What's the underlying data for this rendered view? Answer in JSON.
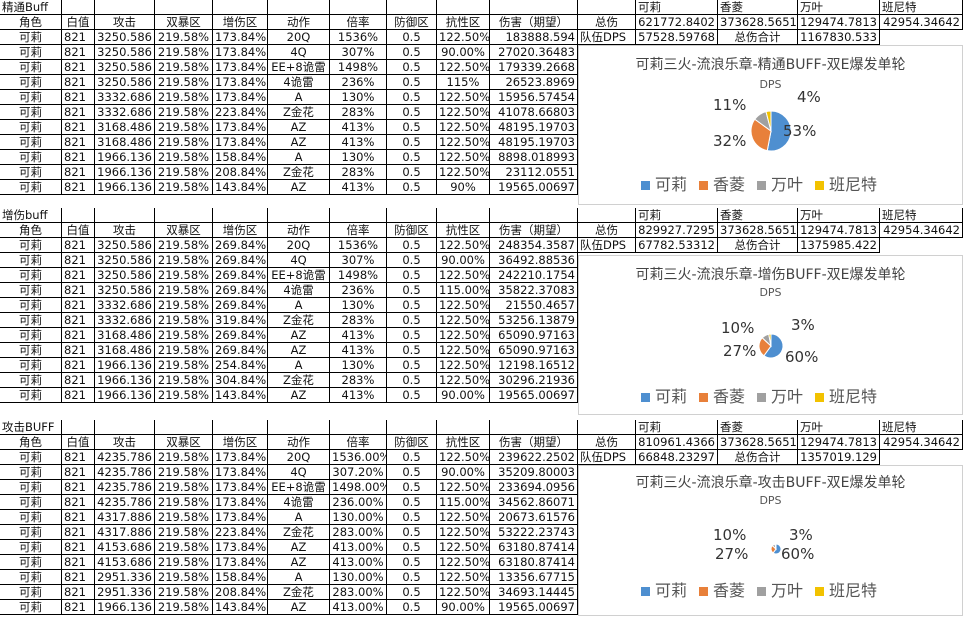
{
  "colors": {
    "koli": "#4e8fd0",
    "xiangling": "#e8803a",
    "wanye": "#a0a0a0",
    "bennett": "#f2c200"
  },
  "sections": [
    {
      "label": "精通Buff",
      "headers": [
        "角色",
        "白值",
        "攻击",
        "双暴区",
        "增伤区",
        "动作",
        "倍率",
        "防御区",
        "抗性区",
        "伤害（期望）"
      ],
      "rows": [
        [
          "可莉",
          "821",
          "3250.586",
          "219.58%",
          "173.84%",
          "20Q",
          "1536%",
          "0.5",
          "122.50%",
          "183888.594"
        ],
        [
          "可莉",
          "821",
          "3250.586",
          "219.58%",
          "173.84%",
          "4Q",
          "307%",
          "0.5",
          "90.00%",
          "27020.36483"
        ],
        [
          "可莉",
          "821",
          "3250.586",
          "219.58%",
          "173.84%",
          "EE+8诡雷",
          "1498%",
          "0.5",
          "122.50%",
          "179339.2668"
        ],
        [
          "可莉",
          "821",
          "3250.586",
          "219.58%",
          "173.84%",
          "4诡雷",
          "236%",
          "0.5",
          "115%",
          "26523.8969"
        ],
        [
          "可莉",
          "821",
          "3332.686",
          "219.58%",
          "173.84%",
          "A",
          "130%",
          "0.5",
          "122.50%",
          "15956.57454"
        ],
        [
          "可莉",
          "821",
          "3332.686",
          "219.58%",
          "223.84%",
          "Z金花",
          "283%",
          "0.5",
          "122.50%",
          "41078.66803"
        ],
        [
          "可莉",
          "821",
          "3168.486",
          "219.58%",
          "173.84%",
          "AZ",
          "413%",
          "0.5",
          "122.50%",
          "48195.19703"
        ],
        [
          "可莉",
          "821",
          "3168.486",
          "219.58%",
          "173.84%",
          "AZ",
          "413%",
          "0.5",
          "122.50%",
          "48195.19703"
        ],
        [
          "可莉",
          "821",
          "1966.136",
          "219.58%",
          "158.84%",
          "A",
          "130%",
          "0.5",
          "122.50%",
          "8898.018993"
        ],
        [
          "可莉",
          "821",
          "1966.136",
          "219.58%",
          "208.84%",
          "Z金花",
          "283%",
          "0.5",
          "122.50%",
          "23112.0551"
        ],
        [
          "可莉",
          "821",
          "1966.136",
          "219.58%",
          "143.84%",
          "AZ",
          "413%",
          "0.5",
          "90%",
          "19565.00697"
        ]
      ],
      "summary": {
        "names": [
          "可莉",
          "香菱",
          "万叶",
          "班尼特"
        ],
        "total_label": "总伤",
        "totals": [
          "621772.8402",
          "373628.5651",
          "129474.7813",
          "42954.34642"
        ],
        "team_dps_label": "队伍DPS",
        "team_dps": "57528.59768",
        "sum_label": "总伤合计",
        "sum": "1167830.533"
      },
      "chart": {
        "title": "可莉三火-流浪乐章-精通BUFF-双E爆发单轮",
        "subtitle": "DPS",
        "legend": [
          "可莉",
          "香菱",
          "万叶",
          "班尼特"
        ],
        "labels": [
          "53%",
          "32%",
          "11%",
          "4%"
        ]
      }
    },
    {
      "label": "增伤buff",
      "headers": [
        "角色",
        "白值",
        "攻击",
        "双暴区",
        "增伤区",
        "动作",
        "倍率",
        "防御区",
        "抗性区",
        "伤害（期望）"
      ],
      "rows": [
        [
          "可莉",
          "821",
          "3250.586",
          "219.58%",
          "269.84%",
          "20Q",
          "1536%",
          "0.5",
          "122.50%",
          "248354.3587"
        ],
        [
          "可莉",
          "821",
          "3250.586",
          "219.58%",
          "269.84%",
          "4Q",
          "307%",
          "0.5",
          "90.00%",
          "36492.88536"
        ],
        [
          "可莉",
          "821",
          "3250.586",
          "219.58%",
          "269.84%",
          "EE+8诡雷",
          "1498%",
          "0.5",
          "122.50%",
          "242210.1754"
        ],
        [
          "可莉",
          "821",
          "3250.586",
          "219.58%",
          "269.84%",
          "4诡雷",
          "236%",
          "0.5",
          "115.00%",
          "35822.37083"
        ],
        [
          "可莉",
          "821",
          "3332.686",
          "219.58%",
          "269.84%",
          "A",
          "130%",
          "0.5",
          "122.50%",
          "21550.4657"
        ],
        [
          "可莉",
          "821",
          "3332.686",
          "219.58%",
          "319.84%",
          "Z金花",
          "283%",
          "0.5",
          "122.50%",
          "53256.13879"
        ],
        [
          "可莉",
          "821",
          "3168.486",
          "219.58%",
          "269.84%",
          "AZ",
          "413%",
          "0.5",
          "122.50%",
          "65090.97163"
        ],
        [
          "可莉",
          "821",
          "3168.486",
          "219.58%",
          "269.84%",
          "AZ",
          "413%",
          "0.5",
          "122.50%",
          "65090.97163"
        ],
        [
          "可莉",
          "821",
          "1966.136",
          "219.58%",
          "254.84%",
          "A",
          "130%",
          "0.5",
          "122.50%",
          "12198.16512"
        ],
        [
          "可莉",
          "821",
          "1966.136",
          "219.58%",
          "304.84%",
          "Z金花",
          "283%",
          "0.5",
          "122.50%",
          "30296.21936"
        ],
        [
          "可莉",
          "821",
          "1966.136",
          "219.58%",
          "143.84%",
          "AZ",
          "413%",
          "0.5",
          "90.00%",
          "19565.00697"
        ]
      ],
      "summary": {
        "names": [
          "可莉",
          "香菱",
          "万叶",
          "班尼特"
        ],
        "total_label": "总伤",
        "totals": [
          "829927.7295",
          "373628.5651",
          "129474.7813",
          "42954.34642"
        ],
        "team_dps_label": "队伍DPS",
        "team_dps": "67782.53312",
        "sum_label": "总伤合计",
        "sum": "1375985.422"
      },
      "chart": {
        "title": "可莉三火-流浪乐章-增伤BUFF-双E爆发单轮",
        "subtitle": "DPS",
        "legend": [
          "可莉",
          "香菱",
          "万叶",
          "班尼特"
        ],
        "labels": [
          "60%",
          "27%",
          "10%",
          "3%"
        ]
      }
    },
    {
      "label": "攻击BUFF",
      "headers": [
        "角色",
        "白值",
        "攻击",
        "双暴区",
        "增伤区",
        "动作",
        "倍率",
        "防御区",
        "抗性区",
        "伤害（期望）"
      ],
      "rows": [
        [
          "可莉",
          "821",
          "4235.786",
          "219.58%",
          "173.84%",
          "20Q",
          "1536.00%",
          "0.5",
          "122.50%",
          "239622.2502"
        ],
        [
          "可莉",
          "821",
          "4235.786",
          "219.58%",
          "173.84%",
          "4Q",
          "307.20%",
          "0.5",
          "90.00%",
          "35209.80003"
        ],
        [
          "可莉",
          "821",
          "4235.786",
          "219.58%",
          "173.84%",
          "EE+8诡雷",
          "1498.00%",
          "0.5",
          "122.50%",
          "233694.0956"
        ],
        [
          "可莉",
          "821",
          "4235.786",
          "219.58%",
          "173.84%",
          "4诡雷",
          "236.00%",
          "0.5",
          "115.00%",
          "34562.86071"
        ],
        [
          "可莉",
          "821",
          "4317.886",
          "219.58%",
          "173.84%",
          "A",
          "130.00%",
          "0.5",
          "122.50%",
          "20673.61576"
        ],
        [
          "可莉",
          "821",
          "4317.886",
          "219.58%",
          "223.84%",
          "Z金花",
          "283.00%",
          "0.5",
          "122.50%",
          "53222.23743"
        ],
        [
          "可莉",
          "821",
          "4153.686",
          "219.58%",
          "173.84%",
          "AZ",
          "413.00%",
          "0.5",
          "122.50%",
          "63180.87414"
        ],
        [
          "可莉",
          "821",
          "4153.686",
          "219.58%",
          "173.84%",
          "AZ",
          "413.00%",
          "0.5",
          "122.50%",
          "63180.87414"
        ],
        [
          "可莉",
          "821",
          "2951.336",
          "219.58%",
          "158.84%",
          "A",
          "130.00%",
          "0.5",
          "122.50%",
          "13356.67715"
        ],
        [
          "可莉",
          "821",
          "2951.336",
          "219.58%",
          "208.84%",
          "Z金花",
          "283.00%",
          "0.5",
          "122.50%",
          "34693.14445"
        ],
        [
          "可莉",
          "821",
          "1966.136",
          "219.58%",
          "143.84%",
          "AZ",
          "413.00%",
          "0.5",
          "90.00%",
          "19565.00697"
        ]
      ],
      "summary": {
        "names": [
          "可莉",
          "香菱",
          "万叶",
          "班尼特"
        ],
        "total_label": "总伤",
        "totals": [
          "810961.4366",
          "373628.5651",
          "129474.7813",
          "42954.34642"
        ],
        "team_dps_label": "队伍DPS",
        "team_dps": "66848.23297",
        "sum_label": "总伤合计",
        "sum": "1357019.129"
      },
      "chart": {
        "title": "可莉三火-流浪乐章-攻击BUFF-双E爆发单轮",
        "subtitle": "DPS",
        "legend": [
          "可莉",
          "香菱",
          "万叶",
          "班尼特"
        ],
        "labels": [
          "60%",
          "27%",
          "10%",
          "3%"
        ]
      }
    }
  ],
  "chart_data": [
    {
      "type": "pie",
      "title": "可莉三火-流浪乐章-精通BUFF-双E爆发单轮",
      "subtitle": "DPS",
      "categories": [
        "可莉",
        "香菱",
        "万叶",
        "班尼特"
      ],
      "values": [
        53,
        32,
        11,
        4
      ],
      "legend_position": "bottom"
    },
    {
      "type": "pie",
      "title": "可莉三火-流浪乐章-增伤BUFF-双E爆发单轮",
      "subtitle": "DPS",
      "categories": [
        "可莉",
        "香菱",
        "万叶",
        "班尼特"
      ],
      "values": [
        60,
        27,
        10,
        3
      ],
      "legend_position": "bottom"
    },
    {
      "type": "pie",
      "title": "可莉三火-流浪乐章-攻击BUFF-双E爆发单轮",
      "subtitle": "DPS",
      "categories": [
        "可莉",
        "香菱",
        "万叶",
        "班尼特"
      ],
      "values": [
        60,
        27,
        10,
        3
      ],
      "legend_position": "bottom"
    }
  ]
}
